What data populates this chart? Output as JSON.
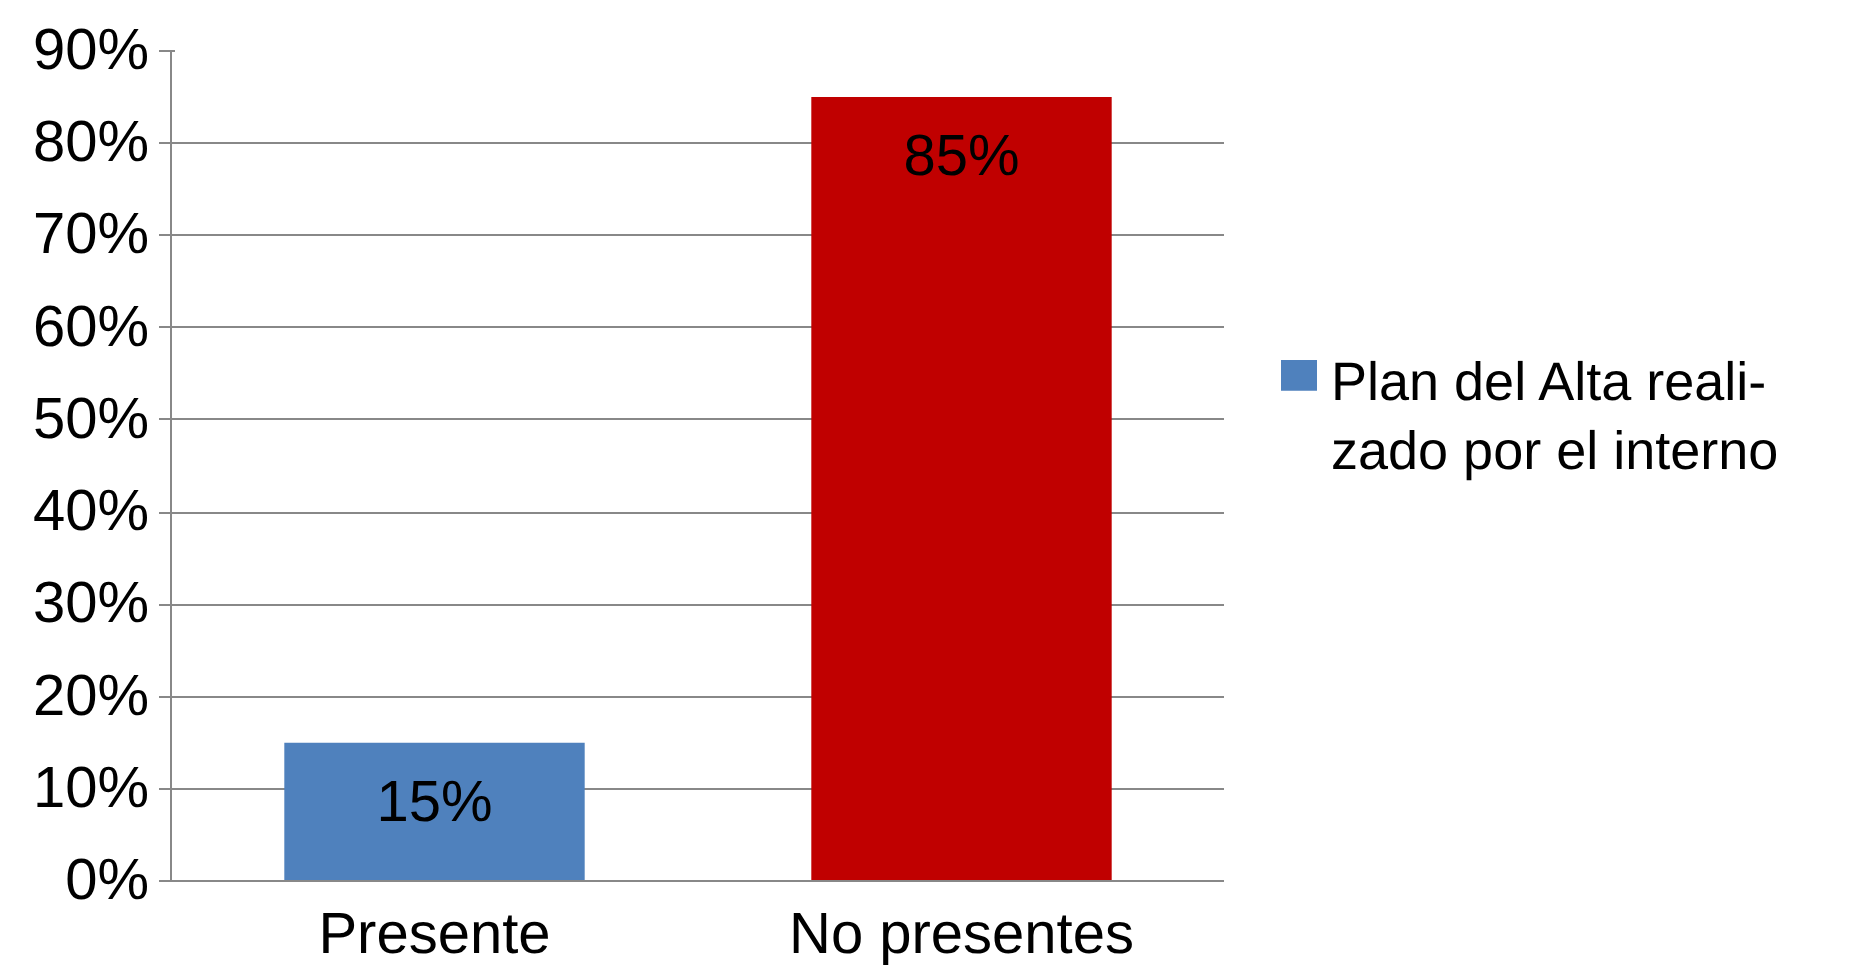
{
  "chart_data": {
    "type": "bar",
    "categories": [
      "Presente",
      "No presentes"
    ],
    "series": [
      {
        "name": "Plan del Alta reali-\nzado por el interno",
        "color": "#4f81bd",
        "colors": [
          "#4f81bd",
          "#c00000"
        ],
        "values": [
          15,
          85
        ],
        "value_labels": [
          "15%",
          "85%"
        ]
      }
    ],
    "ylim": [
      0,
      90
    ],
    "yticks": [
      {
        "value": 0,
        "label": "0%"
      },
      {
        "value": 10,
        "label": "10%"
      },
      {
        "value": 20,
        "label": "20%"
      },
      {
        "value": 30,
        "label": "30%"
      },
      {
        "value": 40,
        "label": "40%"
      },
      {
        "value": 50,
        "label": "50%"
      },
      {
        "value": 60,
        "label": "60%"
      },
      {
        "value": 70,
        "label": "70%"
      },
      {
        "value": 80,
        "label": "80%"
      },
      {
        "value": 90,
        "label": "90%"
      }
    ],
    "grid": "y",
    "legend": "right"
  }
}
